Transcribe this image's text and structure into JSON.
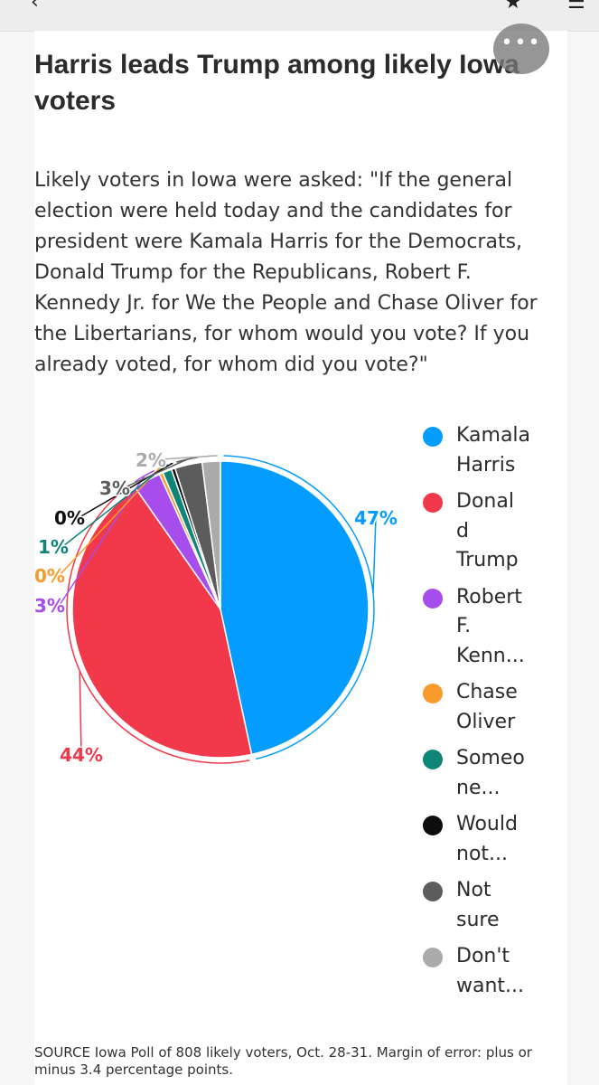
{
  "title": "Harris leads Trump among likely Iowa voters",
  "subtitle": "Likely voters in Iowa were asked: \"If the general election were held today and the candidates for president were Kamala Harris for the Democrats, Donald Trump for the Republicans, Robert F. Kennedy Jr. for We the People and Chase Oliver for the Libertarians, for whom would you vote? If you already voted, for whom did you vote?\"",
  "more_label": "•••",
  "source": "SOURCE Iowa Poll of 808 likely voters, Oct. 28-31. Margin of error: plus or minus 3.4 percentage points.",
  "legend": [
    {
      "lines": [
        "Kamala",
        "Harris"
      ],
      "color": "#049dff"
    },
    {
      "lines": [
        "Donal",
        "d",
        "Trump"
      ],
      "color": "#f1394b"
    },
    {
      "lines": [
        "Robert",
        "F.",
        "Kenn..."
      ],
      "color": "#a64deb"
    },
    {
      "lines": [
        "Chase",
        "Oliver"
      ],
      "color": "#f99a2d"
    },
    {
      "lines": [
        "Someo",
        "ne..."
      ],
      "color": "#0f857a"
    },
    {
      "lines": [
        "Would",
        "not..."
      ],
      "color": "#0d0d0d"
    },
    {
      "lines": [
        "Not",
        "sure"
      ],
      "color": "#5c5c5c"
    },
    {
      "lines": [
        "Don't",
        "want..."
      ],
      "color": "#ababab"
    }
  ],
  "chart_data": {
    "type": "pie",
    "title": "Harris leads Trump among likely Iowa voters",
    "legend_position": "right",
    "slices": [
      {
        "label": "Kamala Harris",
        "value": 47,
        "display": "47%",
        "color": "#049dff"
      },
      {
        "label": "Donald Trump",
        "value": 44,
        "display": "44%",
        "color": "#f1394b"
      },
      {
        "label": "Robert F. Kennedy Jr.",
        "value": 3,
        "display": "3%",
        "color": "#a64deb"
      },
      {
        "label": "Chase Oliver",
        "value": 0.4,
        "display": "0%",
        "color": "#f99a2d"
      },
      {
        "label": "Someone else",
        "value": 1,
        "display": "1%",
        "color": "#0f857a"
      },
      {
        "label": "Would not vote",
        "value": 0.4,
        "display": "0%",
        "color": "#0d0d0d"
      },
      {
        "label": "Not sure",
        "value": 3,
        "display": "3%",
        "color": "#5c5c5c"
      },
      {
        "label": "Don't want to tell",
        "value": 2,
        "display": "2%",
        "color": "#ababab"
      }
    ]
  }
}
